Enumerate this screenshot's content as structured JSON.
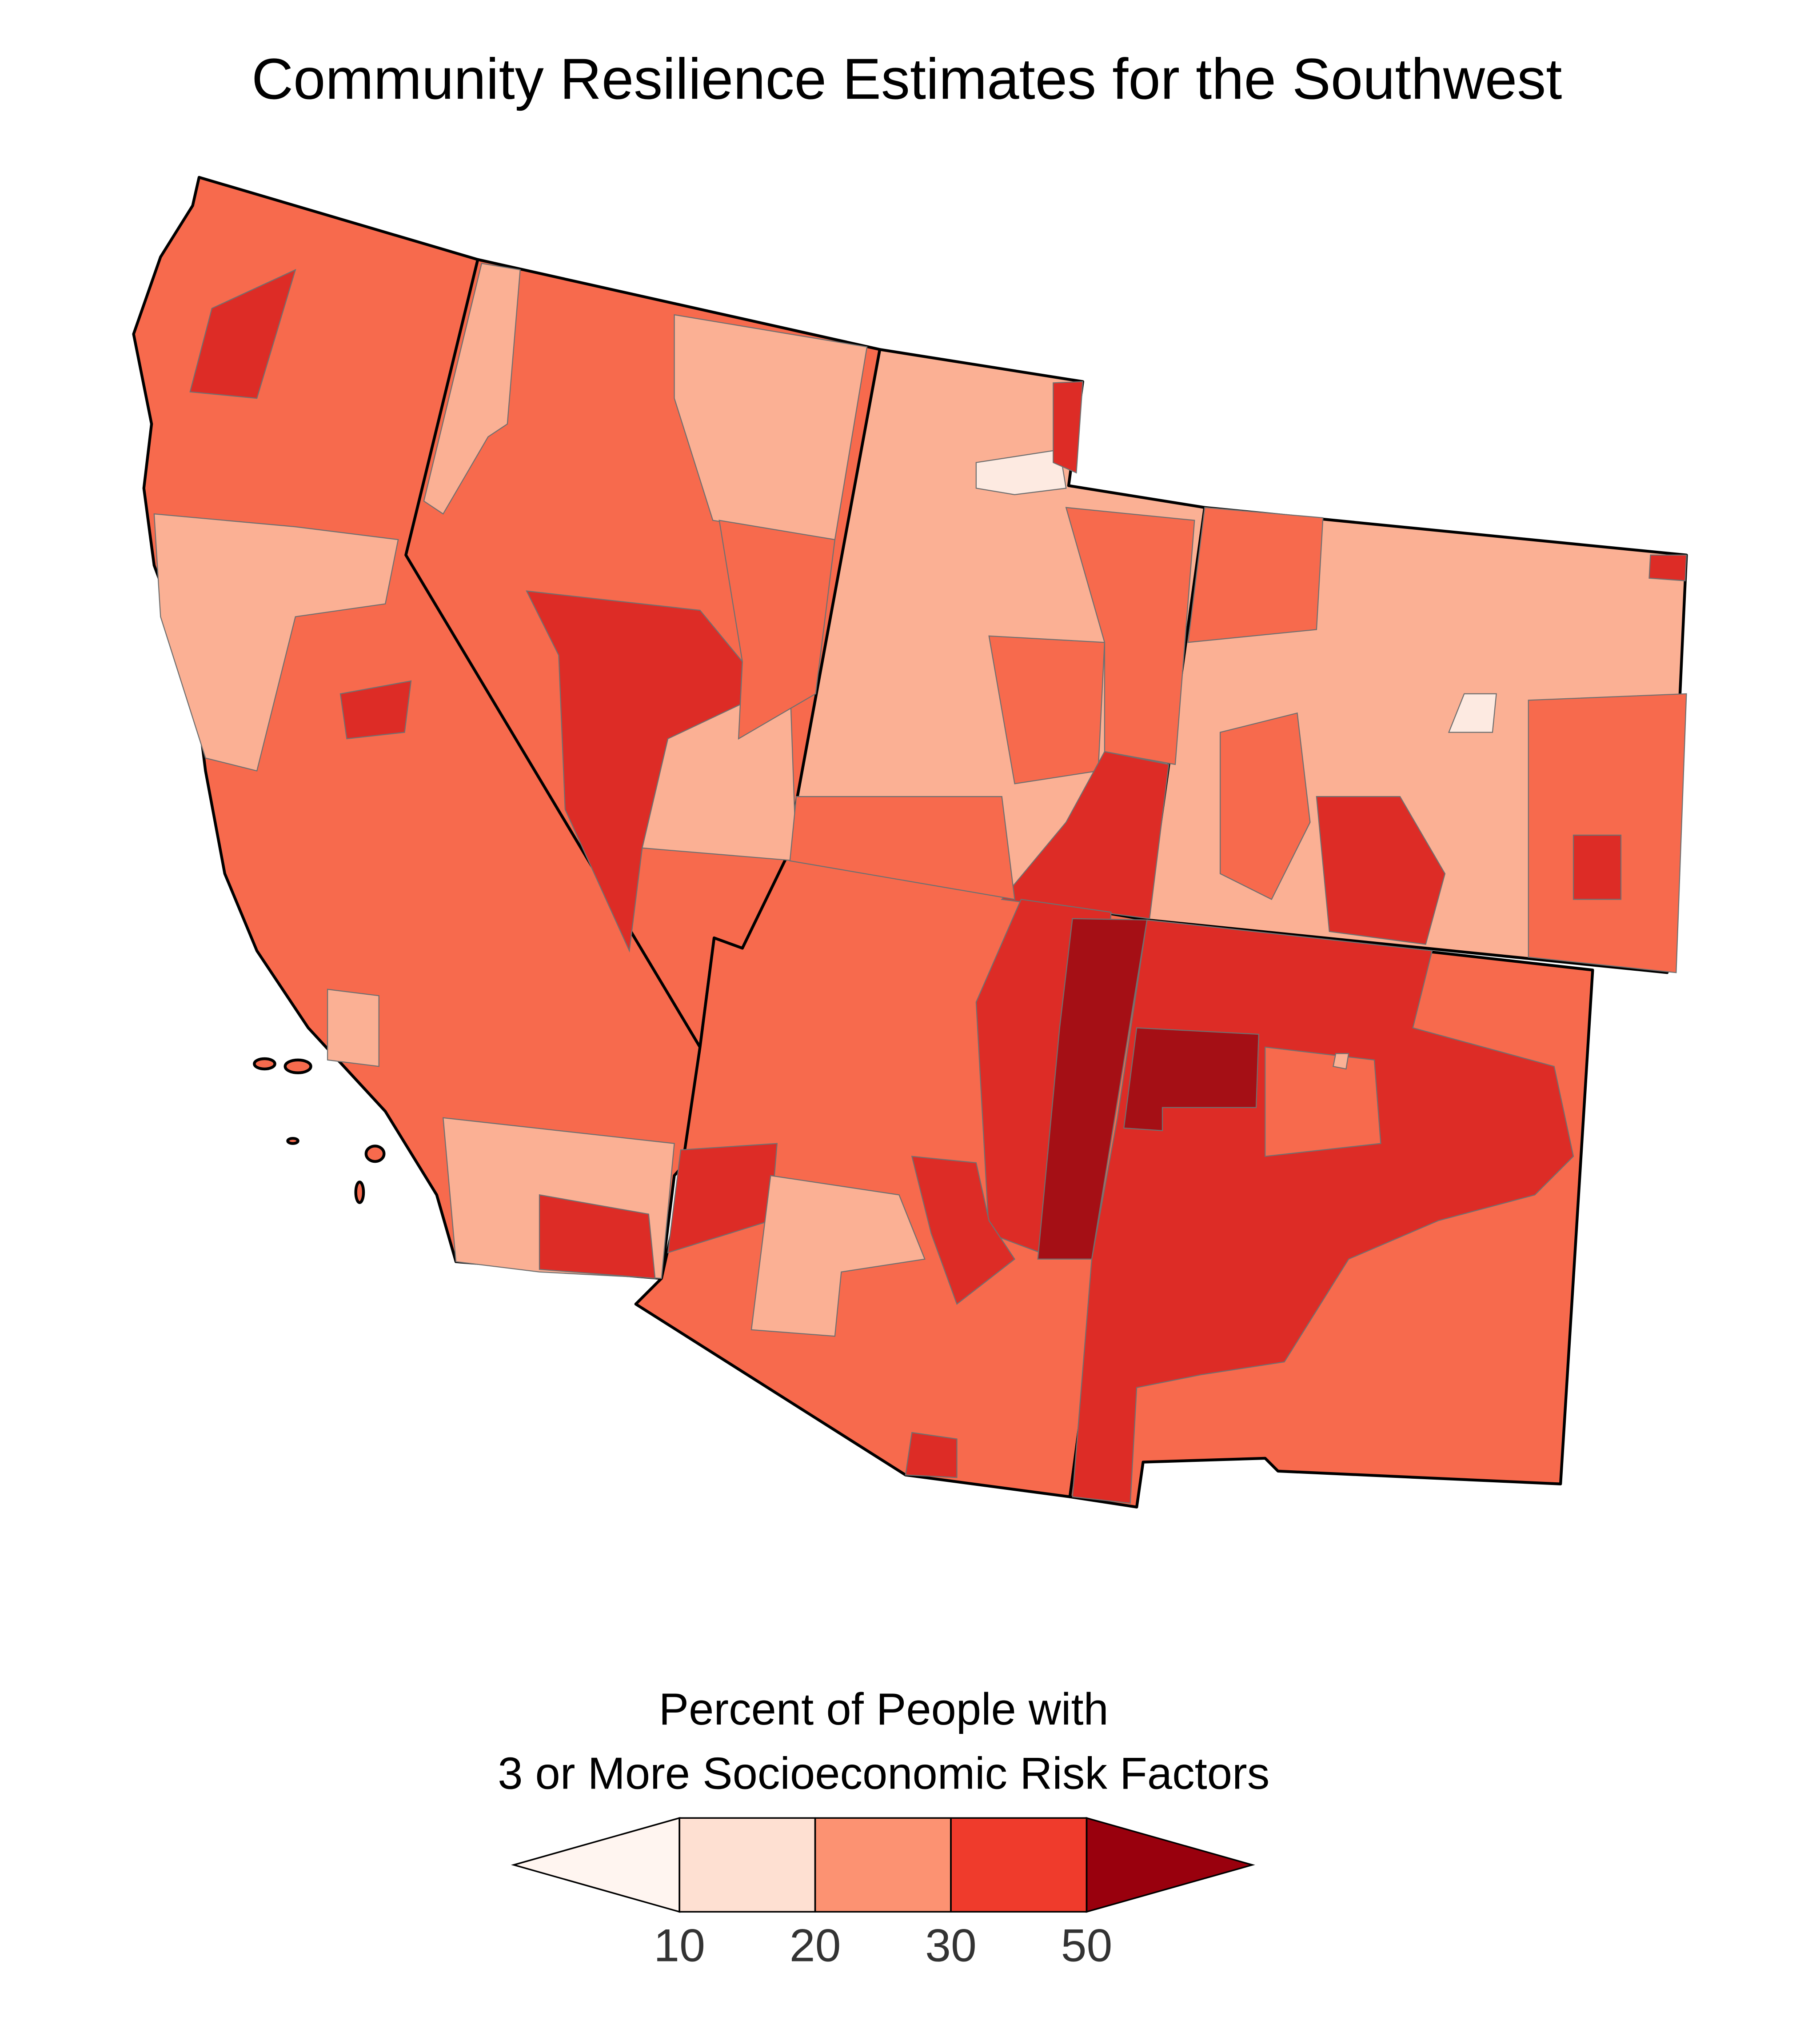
{
  "title": "Community Resilience Estimates for the Southwest",
  "legend": {
    "title": [
      "Percent of People with",
      "3 or More Socioeconomic Risk Factors"
    ],
    "ticks": [
      10,
      20,
      30,
      50
    ],
    "colors": [
      "#fff5f0",
      "#fee0d2",
      "#fc9272",
      "#ef3b2c",
      "#99000d"
    ]
  }
}
